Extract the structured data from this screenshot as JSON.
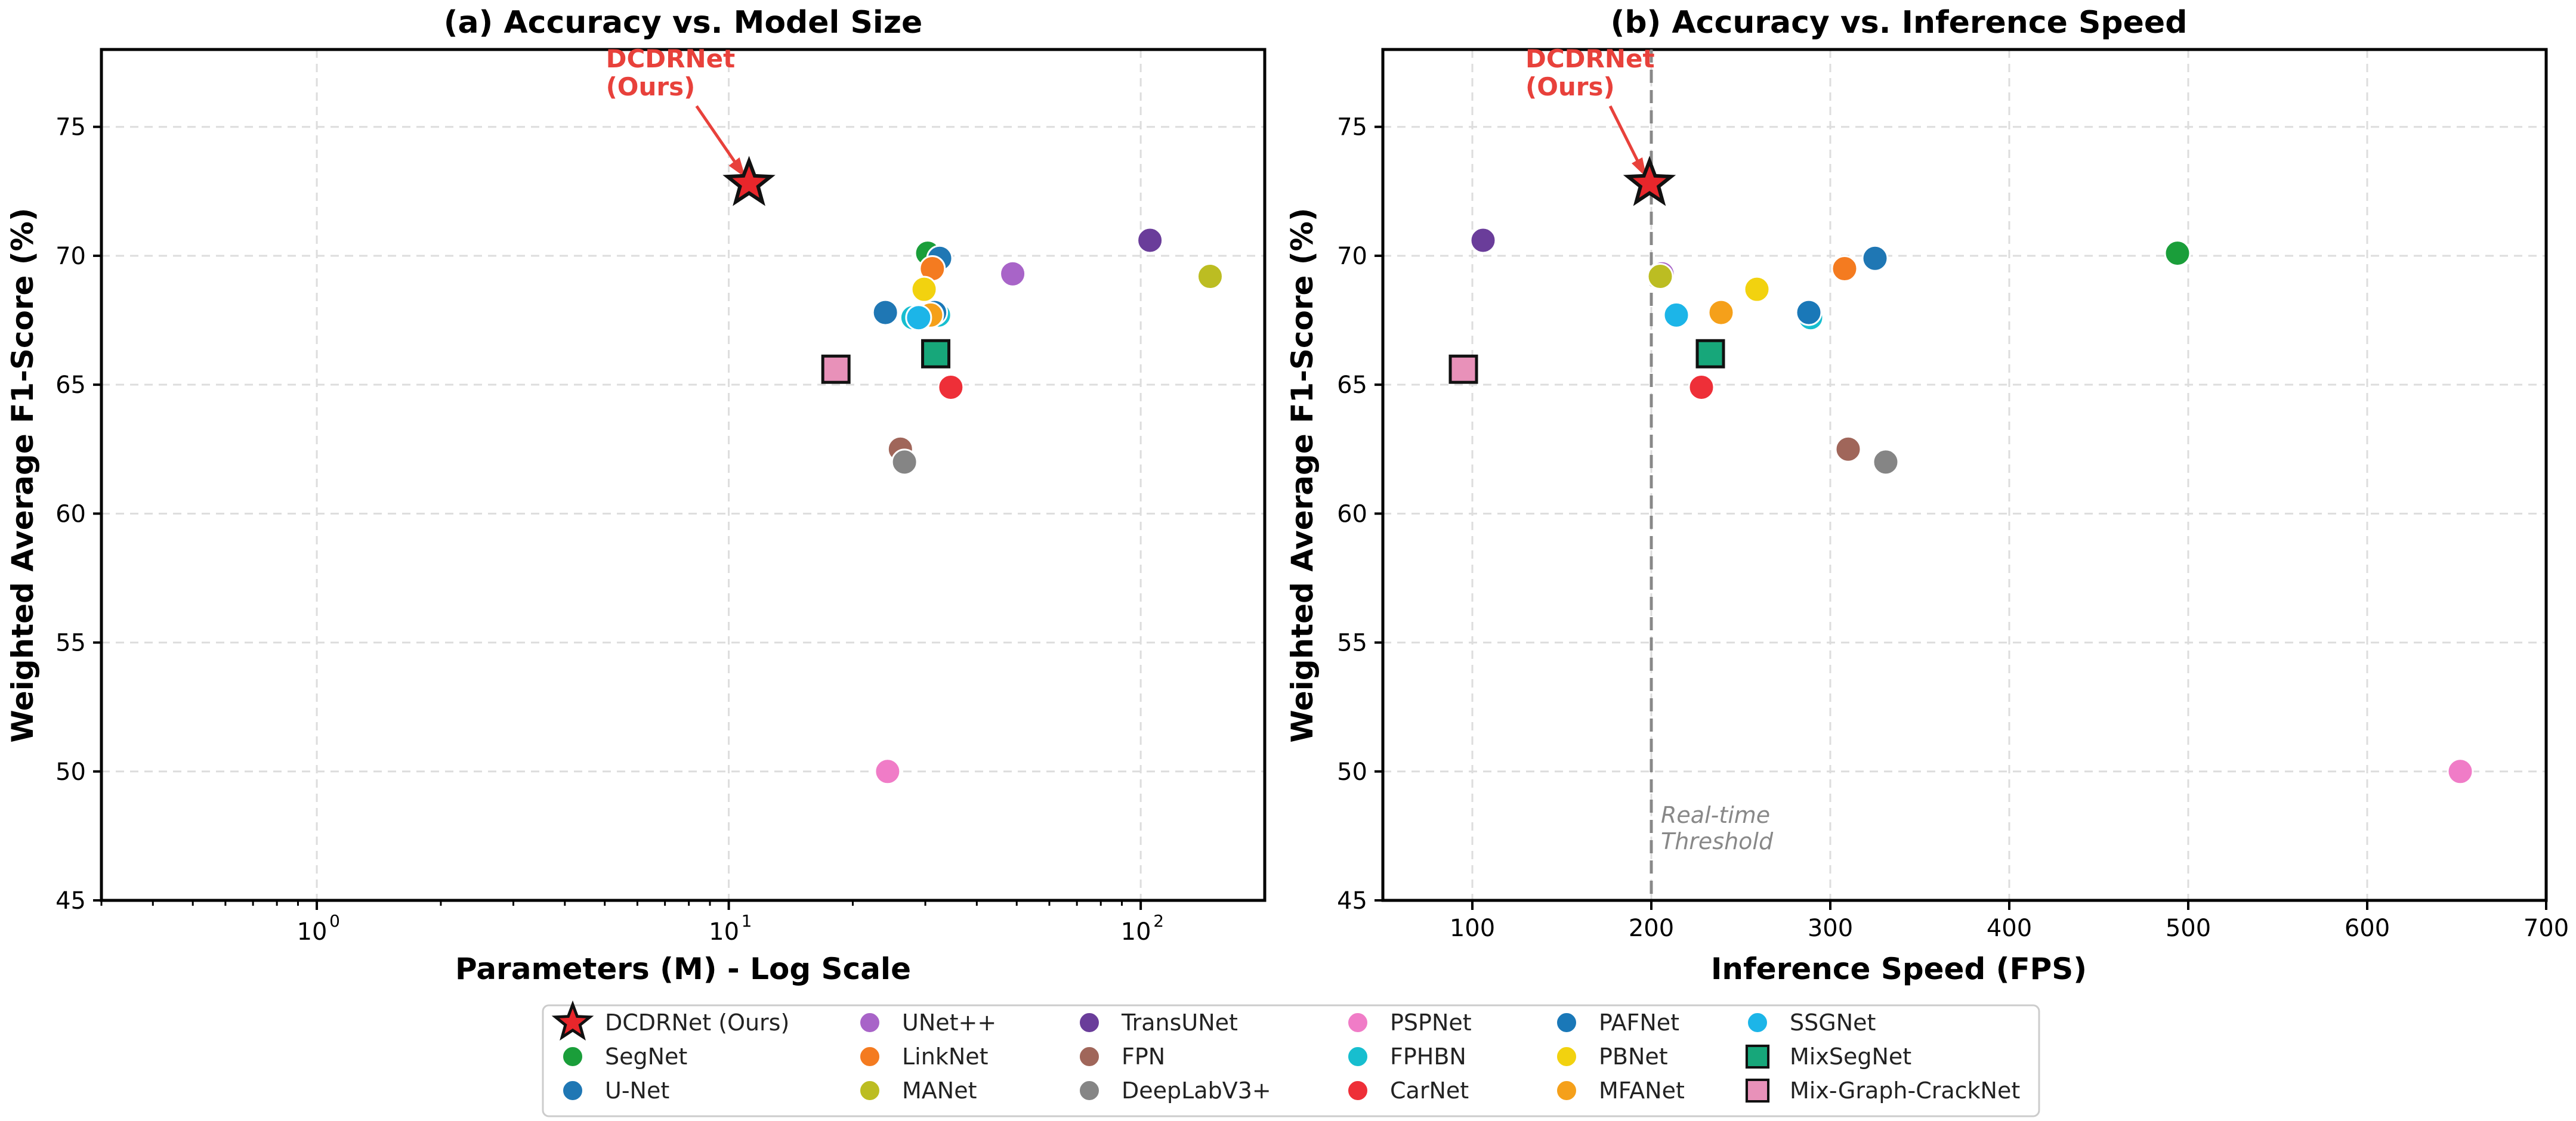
{
  "chart_data": [
    {
      "type": "scatter",
      "title": "(a) Accuracy vs. Model Size",
      "xlabel": "Parameters (M) - Log Scale",
      "ylabel": "Weighted Average F1-Score (%)",
      "xscale": "log",
      "xlim": [
        0.3,
        200
      ],
      "ylim": [
        45,
        78
      ],
      "xticks": [
        "10",
        "10",
        "10"
      ],
      "xtick_exponents": [
        "0",
        "1",
        "2"
      ],
      "xtick_values": [
        1,
        10,
        100
      ],
      "yticks": [
        45,
        50,
        55,
        60,
        65,
        70,
        75
      ],
      "grid": true,
      "annotation": {
        "text_line1": "DCDRNet",
        "text_line2": "(Ours)",
        "target": [
          11.2,
          72.8
        ]
      },
      "points": [
        {
          "name": "DCDRNet (Ours)",
          "x": 11.2,
          "y": 72.8
        },
        {
          "name": "SegNet",
          "x": 30.4,
          "y": 70.1
        },
        {
          "name": "U-Net",
          "x": 32.5,
          "y": 69.9
        },
        {
          "name": "U-Net",
          "x": 24.0,
          "y": 67.8
        },
        {
          "name": "UNet++",
          "x": 48.9,
          "y": 69.3
        },
        {
          "name": "LinkNet",
          "x": 31.2,
          "y": 69.5
        },
        {
          "name": "MANet",
          "x": 147.4,
          "y": 69.2
        },
        {
          "name": "TransUNet",
          "x": 105.3,
          "y": 70.6
        },
        {
          "name": "FPN",
          "x": 26.1,
          "y": 62.5
        },
        {
          "name": "DeepLabV3+",
          "x": 26.7,
          "y": 62.0
        },
        {
          "name": "PSPNet",
          "x": 24.3,
          "y": 50.0
        },
        {
          "name": "FPHBN",
          "x": 28.0,
          "y": 67.6
        },
        {
          "name": "FPHBN",
          "x": 32.3,
          "y": 67.7
        },
        {
          "name": "CarNet",
          "x": 34.6,
          "y": 64.9
        },
        {
          "name": "PAFNet",
          "x": 31.6,
          "y": 67.8
        },
        {
          "name": "PBNet",
          "x": 29.8,
          "y": 68.7
        },
        {
          "name": "MFANet",
          "x": 30.9,
          "y": 67.7
        },
        {
          "name": "SSGNet",
          "x": 28.9,
          "y": 67.6
        },
        {
          "name": "MixSegNet",
          "x": 31.8,
          "y": 66.2
        },
        {
          "name": "Mix-Graph-CrackNet",
          "x": 18.2,
          "y": 65.6
        }
      ]
    },
    {
      "type": "scatter",
      "title": "(b) Accuracy vs. Inference Speed",
      "xlabel": "Inference Speed (FPS)",
      "ylabel": "Weighted Average F1-Score (%)",
      "xlim": [
        50,
        700
      ],
      "ylim": [
        45,
        78
      ],
      "xticks": [
        100,
        200,
        300,
        400,
        500,
        600,
        700
      ],
      "yticks": [
        45,
        50,
        55,
        60,
        65,
        70,
        75
      ],
      "grid": true,
      "threshold": {
        "x": 200,
        "label_line1": "Real-time",
        "label_line2": "Threshold"
      },
      "annotation": {
        "text_line1": "DCDRNet",
        "text_line2": "(Ours)",
        "target": [
          199,
          72.8
        ]
      },
      "points": [
        {
          "name": "DCDRNet (Ours)",
          "x": 199,
          "y": 72.8
        },
        {
          "name": "SegNet",
          "x": 494,
          "y": 70.1
        },
        {
          "name": "U-Net",
          "x": 325,
          "y": 69.9
        },
        {
          "name": "U-Net",
          "x": 288,
          "y": 67.8
        },
        {
          "name": "UNet++",
          "x": 206,
          "y": 69.3
        },
        {
          "name": "LinkNet",
          "x": 308,
          "y": 69.5
        },
        {
          "name": "MANet",
          "x": 205,
          "y": 69.2
        },
        {
          "name": "TransUNet",
          "x": 106,
          "y": 70.6
        },
        {
          "name": "FPN",
          "x": 310,
          "y": 62.5
        },
        {
          "name": "DeepLabV3+",
          "x": 331,
          "y": 62.0
        },
        {
          "name": "PSPNet",
          "x": 652,
          "y": 50.0
        },
        {
          "name": "FPHBN",
          "x": 289,
          "y": 67.6
        },
        {
          "name": "CarNet",
          "x": 228,
          "y": 64.9
        },
        {
          "name": "PAFNet",
          "x": 288,
          "y": 67.8
        },
        {
          "name": "PBNet",
          "x": 259,
          "y": 68.7
        },
        {
          "name": "MFANet",
          "x": 239,
          "y": 67.8
        },
        {
          "name": "SSGNet",
          "x": 214,
          "y": 67.7
        },
        {
          "name": "MixSegNet",
          "x": 233,
          "y": 66.2
        },
        {
          "name": "Mix-Graph-CrackNet",
          "x": 95,
          "y": 65.6
        }
      ]
    }
  ],
  "legend": {
    "placement": "bottom-center",
    "entries": [
      {
        "name": "DCDRNet (Ours)",
        "color": "#e8262b",
        "marker": "star"
      },
      {
        "name": "SegNet",
        "color": "#1a9e3a",
        "marker": "circle"
      },
      {
        "name": "U-Net",
        "color": "#1f77b4",
        "marker": "circle"
      },
      {
        "name": "UNet++",
        "color": "#a864c8",
        "marker": "circle"
      },
      {
        "name": "LinkNet",
        "color": "#f47b20",
        "marker": "circle"
      },
      {
        "name": "MANet",
        "color": "#bcbd22",
        "marker": "circle"
      },
      {
        "name": "TransUNet",
        "color": "#6a3d9a",
        "marker": "circle"
      },
      {
        "name": "FPN",
        "color": "#a0665a",
        "marker": "circle"
      },
      {
        "name": "DeepLabV3+",
        "color": "#858585",
        "marker": "circle"
      },
      {
        "name": "PSPNet",
        "color": "#f07cc7",
        "marker": "circle"
      },
      {
        "name": "FPHBN",
        "color": "#17becf",
        "marker": "circle"
      },
      {
        "name": "CarNet",
        "color": "#ee2f38",
        "marker": "circle"
      },
      {
        "name": "PAFNet",
        "color": "#1a78b8",
        "marker": "circle"
      },
      {
        "name": "PBNet",
        "color": "#f2d20f",
        "marker": "circle"
      },
      {
        "name": "MFANet",
        "color": "#f5a01a",
        "marker": "circle"
      },
      {
        "name": "SSGNet",
        "color": "#1cb5e8",
        "marker": "circle"
      },
      {
        "name": "MixSegNet",
        "color": "#17a77a",
        "marker": "square"
      },
      {
        "name": "Mix-Graph-CrackNet",
        "color": "#e891b9",
        "marker": "square"
      }
    ]
  }
}
